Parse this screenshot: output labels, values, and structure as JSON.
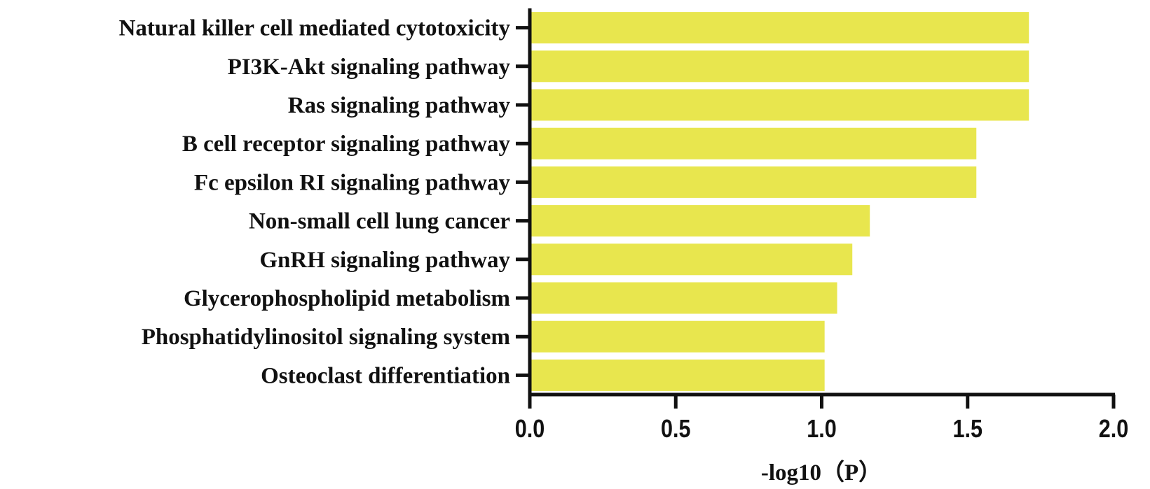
{
  "chart_data": {
    "type": "bar",
    "orientation": "horizontal",
    "title": "",
    "xlabel": "-log10（P）",
    "ylabel": "",
    "xlim": [
      0,
      2.0
    ],
    "xticks": [
      "0.0",
      "0.5",
      "1.0",
      "1.5",
      "2.0"
    ],
    "grid": false,
    "bar_color": "#e8e64e",
    "categories": [
      "Natural killer cell mediated cytotoxicity",
      "PI3K-Akt signaling pathway",
      "Ras signaling pathway",
      "B cell receptor signaling pathway",
      "Fc epsilon RI signaling pathway",
      "Non-small cell lung cancer",
      "GnRH signaling pathway",
      "Glycerophospholipid metabolism",
      "Phosphatidylinositol signaling system",
      "Osteoclast differentiation"
    ],
    "values": [
      1.71,
      1.71,
      1.71,
      1.53,
      1.53,
      1.165,
      1.105,
      1.053,
      1.01,
      1.01
    ]
  }
}
